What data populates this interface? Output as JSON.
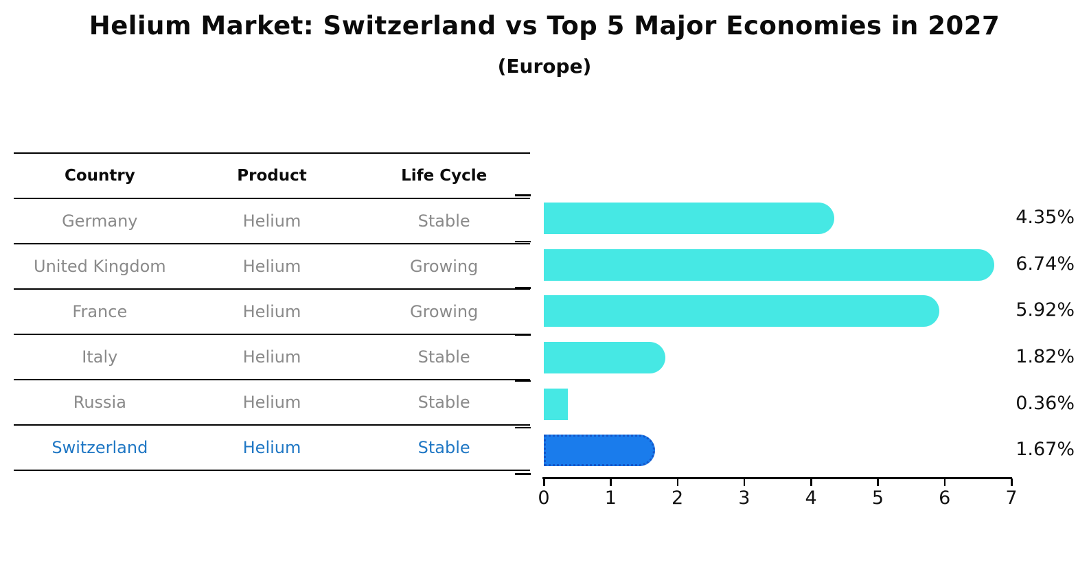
{
  "title": "Helium Market: Switzerland vs Top 5 Major Economies in 2027",
  "subtitle": "(Europe)",
  "table": {
    "headers": [
      "Country",
      "Product",
      "Life Cycle"
    ],
    "rows": [
      {
        "country": "Germany",
        "product": "Helium",
        "life_cycle": "Stable",
        "highlighted": false
      },
      {
        "country": "United Kingdom",
        "product": "Helium",
        "life_cycle": "Growing",
        "highlighted": false
      },
      {
        "country": "France",
        "product": "Helium",
        "life_cycle": "Growing",
        "highlighted": false
      },
      {
        "country": "Italy",
        "product": "Helium",
        "life_cycle": "Stable",
        "highlighted": false
      },
      {
        "country": "Russia",
        "product": "Helium",
        "life_cycle": "Stable",
        "highlighted": false
      },
      {
        "country": "Switzerland",
        "product": "Helium",
        "life_cycle": "Stable",
        "highlighted": true
      }
    ]
  },
  "chart_data": {
    "type": "bar",
    "orientation": "horizontal",
    "title": "Helium Market: Switzerland vs Top 5 Major Economies in 2027",
    "subtitle": "(Europe)",
    "categories": [
      "Germany",
      "United Kingdom",
      "France",
      "Italy",
      "Russia",
      "Switzerland"
    ],
    "values": [
      4.35,
      6.74,
      5.92,
      1.82,
      0.36,
      1.67
    ],
    "value_labels": [
      "4.35%",
      "6.74%",
      "5.92%",
      "1.82%",
      "0.36%",
      "1.67%"
    ],
    "xlabel": "",
    "ylabel": "",
    "xlim": [
      0,
      7
    ],
    "x_ticks": [
      0,
      1,
      2,
      3,
      4,
      5,
      6,
      7
    ],
    "grid": false,
    "legend": "none",
    "highlight_category": "Switzerland",
    "colors": {
      "bar": "#46e8e4",
      "highlight_bar": "#1a7cec",
      "highlight_border": "#1456c8",
      "highlight_text": "#1f77c4",
      "row_text": "#8a8a8a",
      "axis": "#000000"
    }
  }
}
